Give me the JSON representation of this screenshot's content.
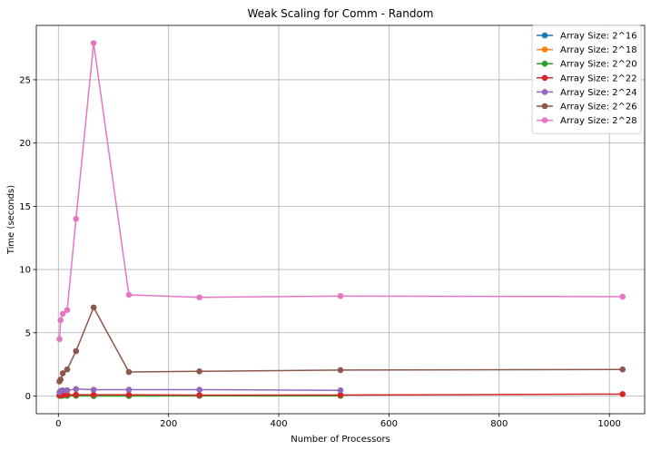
{
  "chart_data": {
    "type": "line",
    "title": "Weak Scaling for Comm - Random",
    "xlabel": "Number of Processors",
    "ylabel": "Time (seconds)",
    "xlim": [
      -40,
      1064
    ],
    "ylim": [
      -1.4,
      29.3
    ],
    "xticks": [
      0,
      200,
      400,
      600,
      800,
      1000
    ],
    "yticks": [
      0,
      5,
      10,
      15,
      20,
      25
    ],
    "grid": true,
    "legend_position": "top-right",
    "series": [
      {
        "name": "Array Size: 2^16",
        "color": "#1f77b4",
        "x": [
          2,
          4,
          8,
          16,
          32,
          64,
          128,
          256,
          512
        ],
        "y": [
          0.02,
          0.02,
          0.03,
          0.03,
          0.03,
          0.03,
          0.03,
          0.03,
          0.04
        ]
      },
      {
        "name": "Array Size: 2^18",
        "color": "#ff7f0e",
        "x": [
          2,
          4,
          8,
          16,
          32,
          64,
          128,
          256,
          512
        ],
        "y": [
          0.03,
          0.04,
          0.04,
          0.04,
          0.05,
          0.05,
          0.05,
          0.05,
          0.05
        ]
      },
      {
        "name": "Array Size: 2^20",
        "color": "#2ca02c",
        "x": [
          2,
          4,
          8,
          16,
          32,
          64,
          128,
          256,
          512
        ],
        "y": [
          0.02,
          0.01,
          0.02,
          0.01,
          0.02,
          0.0,
          0.0,
          0.01,
          0.01
        ]
      },
      {
        "name": "Array Size: 2^22",
        "color": "#d62728",
        "x": [
          2,
          4,
          8,
          16,
          32,
          64,
          128,
          256,
          512,
          1024
        ],
        "y": [
          0.05,
          0.06,
          0.08,
          0.1,
          0.1,
          0.1,
          0.1,
          0.07,
          0.08,
          0.15
        ]
      },
      {
        "name": "Array Size: 2^24",
        "color": "#9467bd",
        "x": [
          2,
          4,
          8,
          16,
          32,
          64,
          128,
          256,
          512
        ],
        "y": [
          0.3,
          0.4,
          0.45,
          0.45,
          0.55,
          0.5,
          0.5,
          0.5,
          0.45
        ]
      },
      {
        "name": "Array Size: 2^26",
        "color": "#8c564b",
        "x": [
          2,
          4,
          8,
          16,
          32,
          64,
          128,
          256,
          512,
          1024
        ],
        "y": [
          1.15,
          1.3,
          1.8,
          2.1,
          3.55,
          7.0,
          1.9,
          1.95,
          2.05,
          2.1
        ]
      },
      {
        "name": "Array Size: 2^28",
        "color": "#e377c2",
        "x": [
          2,
          4,
          8,
          16,
          32,
          64,
          128,
          256,
          512,
          1024
        ],
        "y": [
          4.5,
          6.0,
          6.5,
          6.8,
          14.0,
          27.9,
          8.0,
          7.8,
          7.9,
          7.85
        ]
      }
    ]
  }
}
